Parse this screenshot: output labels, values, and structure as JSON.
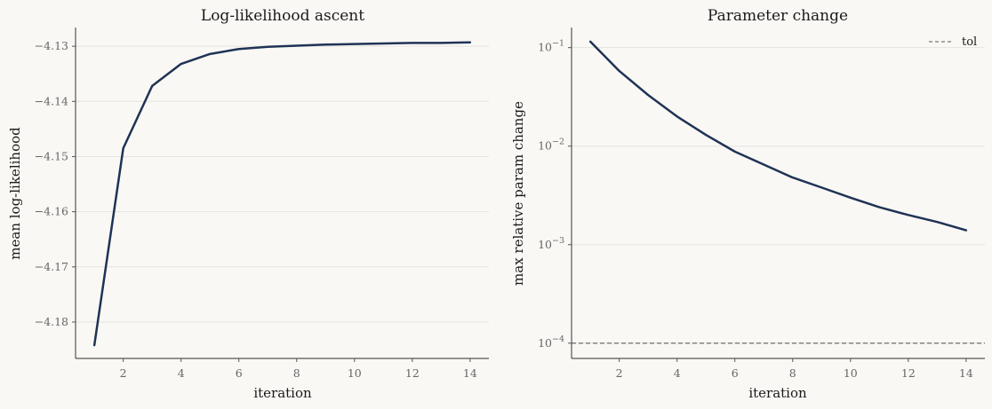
{
  "chart_data": [
    {
      "type": "line",
      "title": "Log-likelihood ascent",
      "xlabel": "iteration",
      "ylabel": "mean log-likelihood",
      "xlim": [
        0.35,
        14.65
      ],
      "ylim": [
        -4.1866,
        -4.1266
      ],
      "xticks": [
        2,
        4,
        6,
        8,
        10,
        12,
        14
      ],
      "yticks": [
        -4.18,
        -4.17,
        -4.16,
        -4.15,
        -4.14,
        -4.13
      ],
      "ytick_labels": [
        "−4.18",
        "−4.17",
        "−4.16",
        "−4.15",
        "−4.14",
        "−4.13"
      ],
      "grid": "y",
      "series": [
        {
          "color": "#1f3355",
          "x": [
            1,
            2,
            3,
            4,
            5,
            6,
            7,
            8,
            9,
            10,
            11,
            12,
            13,
            14
          ],
          "y": [
            -4.1842,
            -4.1485,
            -4.1372,
            -4.1332,
            -4.1314,
            -4.1305,
            -4.1301,
            -4.1299,
            -4.1297,
            -4.1296,
            -4.1295,
            -4.1294,
            -4.1294,
            -4.1293
          ]
        }
      ]
    },
    {
      "type": "line",
      "title": "Parameter change",
      "xlabel": "iteration",
      "ylabel": "max relative param change",
      "yscale": "log",
      "xlim": [
        0.35,
        14.65
      ],
      "ylim": [
        7e-05,
        0.16
      ],
      "xticks": [
        2,
        4,
        6,
        8,
        10,
        12,
        14
      ],
      "yticks": [
        0.0001,
        0.001,
        0.01,
        0.1
      ],
      "ytick_bases": [
        "10",
        "10",
        "10",
        "10"
      ],
      "ytick_exps": [
        "−4",
        "−3",
        "−2",
        "−1"
      ],
      "grid": "y",
      "legend": "top-right",
      "series": [
        {
          "color": "#1f3355",
          "x": [
            1,
            2,
            3,
            4,
            5,
            6,
            7,
            8,
            9,
            10,
            11,
            12,
            13,
            14
          ],
          "y": [
            0.115,
            0.058,
            0.033,
            0.02,
            0.013,
            0.0088,
            0.0065,
            0.0048,
            0.0038,
            0.003,
            0.0024,
            0.002,
            0.0017,
            0.0014
          ]
        }
      ],
      "hlines": [
        {
          "name": "tol",
          "y": 0.0001,
          "color": "#777777",
          "style": "dashed"
        }
      ]
    }
  ]
}
